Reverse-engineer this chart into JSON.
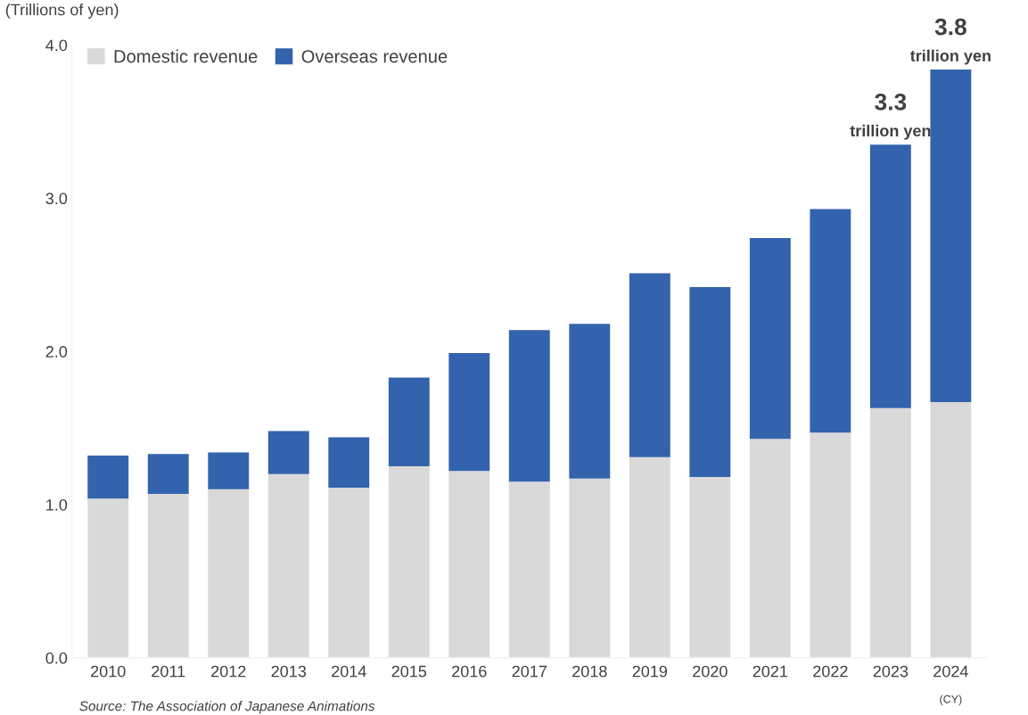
{
  "chart_data": {
    "type": "bar",
    "stacked": true,
    "ylabel": "(Trillions of yen)",
    "xlabel": "(CY)",
    "categories": [
      "2010",
      "2011",
      "2012",
      "2013",
      "2014",
      "2015",
      "2016",
      "2017",
      "2018",
      "2019",
      "2020",
      "2021",
      "2022",
      "2023",
      "2024"
    ],
    "series": [
      {
        "name": "Domestic revenue",
        "color": "#d9d9d9",
        "values": [
          1.04,
          1.07,
          1.1,
          1.2,
          1.11,
          1.25,
          1.22,
          1.15,
          1.17,
          1.31,
          1.18,
          1.43,
          1.47,
          1.63,
          1.67
        ]
      },
      {
        "name": "Overseas revenue",
        "color": "#3363ad",
        "values": [
          0.28,
          0.26,
          0.24,
          0.28,
          0.33,
          0.58,
          0.77,
          0.99,
          1.01,
          1.2,
          1.24,
          1.31,
          1.46,
          1.72,
          2.17
        ]
      }
    ],
    "ylim": [
      0,
      4.0
    ],
    "yticks": [
      {
        "value": 0,
        "label": "0.0"
      },
      {
        "value": 1,
        "label": "1.0"
      },
      {
        "value": 2,
        "label": "2.0"
      },
      {
        "value": 3,
        "label": "3.0"
      },
      {
        "value": 4,
        "label": "4.0"
      }
    ],
    "grid": false,
    "legend": "top left",
    "annotations": [
      "3.3",
      "trillion yen",
      "3.8",
      "trillion yen",
      "Source: The Association of Japanese Animations"
    ]
  }
}
